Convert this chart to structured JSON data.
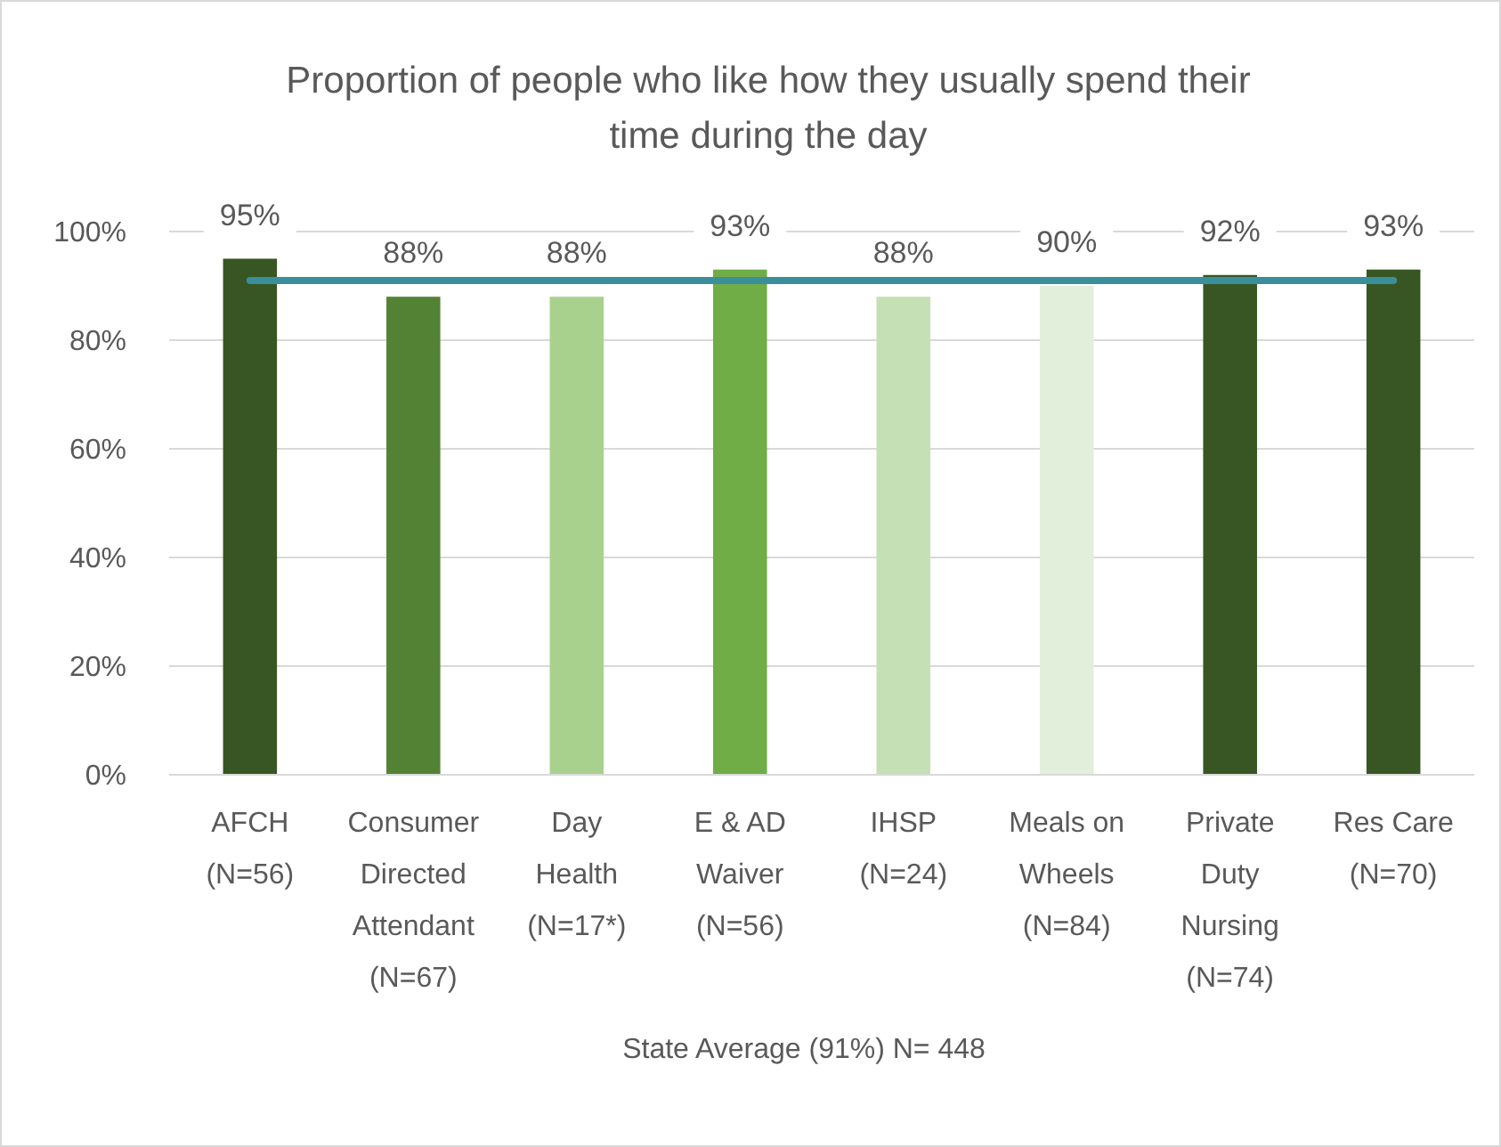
{
  "chart_data": {
    "type": "bar",
    "title": "Proportion of people who like how they usually spend their time during the day",
    "xlabel": "State Average (91%) N= 448",
    "categories": [
      "AFCH (N=56)",
      "Consumer Directed Attendant (N=67)",
      "Day Health (N=17*)",
      "E & AD Waiver (N=56)",
      "IHSP (N=24)",
      "Meals on Wheels (N=84)",
      "Private Duty Nursing (N=74)",
      "Res Care (N=70)"
    ],
    "values": [
      95,
      88,
      88,
      93,
      88,
      90,
      92,
      93
    ],
    "value_labels": [
      "95%",
      "88%",
      "88%",
      "93%",
      "88%",
      "90%",
      "92%",
      "93%"
    ],
    "colors": [
      "#375623",
      "#548235",
      "#a9d18e",
      "#70ad47",
      "#c5e0b4",
      "#e2efda",
      "#375623",
      "#375623"
    ],
    "ylim": [
      0,
      100
    ],
    "yticks": [
      {
        "value": 0,
        "label": "0%"
      },
      {
        "value": 20,
        "label": "20%"
      },
      {
        "value": 40,
        "label": "40%"
      },
      {
        "value": 60,
        "label": "60%"
      },
      {
        "value": 80,
        "label": "80%"
      },
      {
        "value": 100,
        "label": "100%"
      }
    ],
    "ref_lines": [
      {
        "axis": "y",
        "value": 91,
        "color": "#3a8f9a"
      }
    ],
    "grid": "y"
  }
}
